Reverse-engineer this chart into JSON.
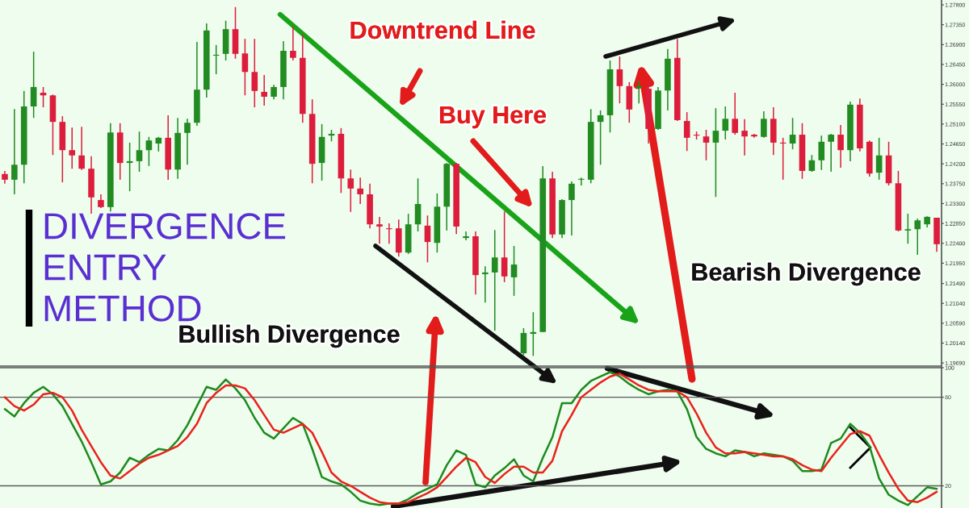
{
  "chart_data": [
    {
      "type": "candlestick",
      "title": "DIVERGENCE ENTRY METHOD",
      "categories": [
        null,
        null,
        null,
        null,
        null,
        null,
        null,
        null,
        null,
        null,
        null,
        null,
        null,
        null,
        null,
        null,
        null,
        null,
        null,
        null,
        null,
        null,
        null,
        null,
        null,
        null,
        null,
        null,
        null,
        null,
        null,
        null,
        null,
        null,
        null,
        null,
        null,
        null,
        null,
        null,
        null,
        null,
        null,
        null,
        null,
        null,
        null,
        null,
        null,
        null,
        null,
        null,
        null,
        null,
        null,
        null,
        null,
        null,
        null,
        null,
        null,
        null,
        null,
        null,
        null,
        null,
        null,
        null,
        null,
        null,
        null,
        null,
        null,
        null,
        null,
        null,
        null,
        null,
        null,
        null,
        null,
        null,
        null,
        null,
        null,
        null,
        null,
        null,
        null,
        null,
        null,
        null,
        null,
        null,
        null,
        null,
        null,
        null
      ],
      "ohlc": [
        [
          1.2397,
          1.2404,
          1.2375,
          1.2384
        ],
        [
          1.2384,
          1.2544,
          1.2351,
          1.2418
        ],
        [
          1.2418,
          1.2585,
          1.2376,
          1.255
        ],
        [
          1.255,
          1.2674,
          1.2524,
          1.2594
        ],
        [
          1.2581,
          1.2594,
          1.2548,
          1.2575
        ],
        [
          1.2575,
          1.2577,
          1.244,
          1.2515
        ],
        [
          1.2515,
          1.2528,
          1.2378,
          1.2451
        ],
        [
          1.2451,
          1.2502,
          1.2409,
          1.2439
        ],
        [
          1.2439,
          1.2504,
          1.2406,
          1.2409
        ],
        [
          1.2409,
          1.2437,
          1.2307,
          1.2344
        ],
        [
          1.2338,
          1.2351,
          1.232,
          1.2322
        ],
        [
          1.2322,
          1.2512,
          1.2312,
          1.2491
        ],
        [
          1.2491,
          1.2512,
          1.2384,
          1.2422
        ],
        [
          1.2422,
          1.2468,
          1.2358,
          1.2426
        ],
        [
          1.2426,
          1.2493,
          1.2402,
          1.2451
        ],
        [
          1.2451,
          1.2481,
          1.2415,
          1.2473
        ],
        [
          1.2466,
          1.2481,
          1.2448,
          1.2479
        ],
        [
          1.2479,
          1.253,
          1.2384,
          1.2407
        ],
        [
          1.2407,
          1.2524,
          1.2386,
          1.249
        ],
        [
          1.249,
          1.2522,
          1.2418,
          1.2513
        ],
        [
          1.2513,
          1.2696,
          1.2506,
          1.2588
        ],
        [
          1.2588,
          1.2738,
          1.257,
          1.2722
        ],
        [
          1.2665,
          1.2689,
          1.2623,
          1.2667
        ],
        [
          1.2669,
          1.2744,
          1.2654,
          1.2725
        ],
        [
          1.2725,
          1.2775,
          1.2658,
          1.2669
        ],
        [
          1.267,
          1.2703,
          1.2575,
          1.2628
        ],
        [
          1.2628,
          1.2703,
          1.2548,
          1.2585
        ],
        [
          1.2583,
          1.2621,
          1.2552,
          1.2572
        ],
        [
          1.2572,
          1.2599,
          1.2566,
          1.2594
        ],
        [
          1.2594,
          1.2698,
          1.2566,
          1.2676
        ],
        [
          1.2676,
          1.2731,
          1.2654,
          1.266
        ],
        [
          1.266,
          1.2713,
          1.2513,
          1.2533
        ],
        [
          1.2533,
          1.2566,
          1.2376,
          1.242
        ],
        [
          1.2422,
          1.251,
          1.2382,
          1.2481
        ],
        [
          1.2484,
          1.2497,
          1.2471,
          1.2488
        ],
        [
          1.2488,
          1.2501,
          1.2354,
          1.2387
        ],
        [
          1.2387,
          1.2407,
          1.2311,
          1.2364
        ],
        [
          1.2364,
          1.2389,
          1.2329,
          1.2351
        ],
        [
          1.2351,
          1.2375,
          1.2274,
          1.2283
        ],
        [
          1.2283,
          1.23,
          1.2239,
          1.2278
        ],
        [
          1.2274,
          1.2285,
          1.2239,
          1.2272
        ],
        [
          1.2274,
          1.2294,
          1.221,
          1.2219
        ],
        [
          1.2219,
          1.2307,
          1.2216,
          1.2283
        ],
        [
          1.2283,
          1.2387,
          1.2267,
          1.2329
        ],
        [
          1.228,
          1.2303,
          1.2197,
          1.2243
        ],
        [
          1.2241,
          1.2353,
          1.2219,
          1.2323
        ],
        [
          1.2323,
          1.2422,
          1.2269,
          1.242
        ],
        [
          1.242,
          1.2422,
          1.2261,
          1.2278
        ],
        [
          1.2252,
          1.2267,
          1.2247,
          1.2256
        ],
        [
          1.2256,
          1.2267,
          1.2124,
          1.2168
        ],
        [
          1.217,
          1.2188,
          1.2106,
          1.2174
        ],
        [
          1.2174,
          1.227,
          1.2042,
          1.2208
        ],
        [
          1.2208,
          1.2312,
          1.2152,
          1.2165
        ],
        [
          1.2163,
          1.2234,
          1.2121,
          1.2192
        ],
        [
          1.1991,
          1.2048,
          1.1987,
          1.2037
        ],
        [
          1.2035,
          1.2084,
          1.1985,
          1.2039
        ],
        [
          1.2039,
          1.2415,
          1.2039,
          1.2387
        ],
        [
          1.2387,
          1.2402,
          1.2252,
          1.226
        ],
        [
          1.226,
          1.234,
          1.2252,
          1.2338
        ],
        [
          1.2338,
          1.238,
          1.2258,
          1.2375
        ],
        [
          1.2384,
          1.2389,
          1.2371,
          1.2386
        ],
        [
          1.2384,
          1.2544,
          1.2376,
          1.2515
        ],
        [
          1.2515,
          1.2541,
          1.2418,
          1.253
        ],
        [
          1.253,
          1.2654,
          1.2491,
          1.2634
        ],
        [
          1.2634,
          1.2663,
          1.2557,
          1.2596
        ],
        [
          1.2596,
          1.2605,
          1.2513,
          1.2543
        ],
        [
          1.2592,
          1.2608,
          1.2557,
          1.2596
        ],
        [
          1.259,
          1.2605,
          1.2466,
          1.2499
        ],
        [
          1.2499,
          1.2594,
          1.2497,
          1.2586
        ],
        [
          1.2586,
          1.268,
          1.2541,
          1.2658
        ],
        [
          1.266,
          1.2703,
          1.2517,
          1.2519
        ],
        [
          1.2517,
          1.2537,
          1.2449,
          1.2479
        ],
        [
          1.2486,
          1.2493,
          1.2475,
          1.2484
        ],
        [
          1.2482,
          1.2497,
          1.2428,
          1.2468
        ],
        [
          1.2468,
          1.2546,
          1.2345,
          1.2495
        ],
        [
          1.2495,
          1.255,
          1.2475,
          1.2522
        ],
        [
          1.2522,
          1.2581,
          1.2486,
          1.249
        ],
        [
          1.2495,
          1.2521,
          1.2439,
          1.2482
        ],
        [
          1.2486,
          1.2488,
          1.2479,
          1.2482
        ],
        [
          1.2481,
          1.2539,
          1.2479,
          1.2522
        ],
        [
          1.2522,
          1.2548,
          1.244,
          1.2468
        ],
        [
          1.2468,
          1.2479,
          1.2384,
          1.2466
        ],
        [
          1.2466,
          1.2524,
          1.2453,
          1.2486
        ],
        [
          1.2486,
          1.2512,
          1.2386,
          1.2404
        ],
        [
          1.2404,
          1.244,
          1.2402,
          1.2428
        ],
        [
          1.2428,
          1.2484,
          1.2406,
          1.247
        ],
        [
          1.247,
          1.2488,
          1.2402,
          1.2486
        ],
        [
          1.2486,
          1.2508,
          1.2411,
          1.2451
        ],
        [
          1.2451,
          1.2561,
          1.2426,
          1.2554
        ],
        [
          1.2554,
          1.2568,
          1.2448,
          1.2455
        ],
        [
          1.247,
          1.2473,
          1.2391,
          1.2398
        ],
        [
          1.24,
          1.2479,
          1.2384,
          1.2439
        ],
        [
          1.2439,
          1.247,
          1.2371,
          1.2376
        ],
        [
          1.2376,
          1.2404,
          1.2267,
          1.2269
        ],
        [
          1.2269,
          1.2307,
          1.2239,
          1.2272
        ],
        [
          1.2272,
          1.2296,
          1.2214,
          1.2292
        ],
        [
          1.2283,
          1.2301,
          1.2276,
          1.23
        ],
        [
          1.2298,
          1.2298,
          1.2221,
          1.2238
        ]
      ],
      "colors": [
        "#dc1e3c",
        "#228b22",
        "#228b22",
        "#228b22",
        "#dc1e3c",
        "#dc1e3c",
        "#dc1e3c",
        "#dc1e3c",
        "#dc1e3c",
        "#dc1e3c",
        "#dc1e3c",
        "#228b22",
        "#dc1e3c",
        "#228b22",
        "#228b22",
        "#228b22",
        "#228b22",
        "#dc1e3c",
        "#228b22",
        "#228b22",
        "#228b22",
        "#228b22",
        "#228b22",
        "#228b22",
        "#dc1e3c",
        "#dc1e3c",
        "#dc1e3c",
        "#dc1e3c",
        "#228b22",
        "#228b22",
        "#dc1e3c",
        "#dc1e3c",
        "#dc1e3c",
        "#228b22",
        "#228b22",
        "#dc1e3c",
        "#dc1e3c",
        "#dc1e3c",
        "#dc1e3c",
        "#dc1e3c",
        "#dc1e3c",
        "#dc1e3c",
        "#228b22",
        "#228b22",
        "#dc1e3c",
        "#228b22",
        "#228b22",
        "#dc1e3c",
        "#228b22",
        "#dc1e3c",
        "#228b22",
        "#228b22",
        "#dc1e3c",
        "#228b22",
        "#228b22",
        "#228b22",
        "#228b22",
        "#dc1e3c",
        "#228b22",
        "#228b22",
        "#228b22",
        "#228b22",
        "#228b22",
        "#228b22",
        "#dc1e3c",
        "#dc1e3c",
        "#228b22",
        "#dc1e3c",
        "#228b22",
        "#228b22",
        "#dc1e3c",
        "#dc1e3c",
        "#dc1e3c",
        "#dc1e3c",
        "#228b22",
        "#228b22",
        "#dc1e3c",
        "#dc1e3c",
        "#dc1e3c",
        "#228b22",
        "#dc1e3c",
        "#dc1e3c",
        "#228b22",
        "#dc1e3c",
        "#228b22",
        "#228b22",
        "#228b22",
        "#dc1e3c",
        "#228b22",
        "#dc1e3c",
        "#dc1e3c",
        "#228b22",
        "#dc1e3c",
        "#dc1e3c",
        "#228b22",
        "#228b22",
        "#228b22",
        "#dc1e3c"
      ],
      "ylim": [
        1.1962,
        1.2791
      ],
      "yticks": [
        {
          "value": 1.278,
          "label": "1.27800"
        },
        {
          "value": 1.2735,
          "label": "1.27350"
        },
        {
          "value": 1.269,
          "label": "1.26900"
        },
        {
          "value": 1.2645,
          "label": "1.26450"
        },
        {
          "value": 1.26,
          "label": "1.26000"
        },
        {
          "value": 1.2555,
          "label": "1.25550"
        },
        {
          "value": 1.251,
          "label": "1.25100"
        },
        {
          "value": 1.2465,
          "label": "1.24650"
        },
        {
          "value": 1.242,
          "label": "1.24200"
        },
        {
          "value": 1.2375,
          "label": "1.23750"
        },
        {
          "value": 1.233,
          "label": "1.23300"
        },
        {
          "value": 1.2285,
          "label": "1.22850"
        },
        {
          "value": 1.224,
          "label": "1.22400"
        },
        {
          "value": 1.2195,
          "label": "1.21950"
        },
        {
          "value": 1.2149,
          "label": "1.21490"
        },
        {
          "value": 1.2104,
          "label": "1.21040"
        },
        {
          "value": 1.2059,
          "label": "1.20590"
        },
        {
          "value": 1.2014,
          "label": "1.20140"
        },
        {
          "value": 1.1969,
          "label": "1.19690"
        }
      ],
      "tick_labels": "y",
      "annotations": [
        "Downtrend Line",
        "Buy Here",
        "Bullish Divergence",
        "Bearish Divergence"
      ]
    },
    {
      "type": "line",
      "categories": [
        null,
        null,
        null,
        null,
        null,
        null,
        null,
        null,
        null,
        null,
        null,
        null,
        null,
        null,
        null,
        null,
        null,
        null,
        null,
        null,
        null,
        null,
        null,
        null,
        null,
        null,
        null,
        null,
        null,
        null,
        null,
        null,
        null,
        null,
        null,
        null,
        null,
        null,
        null,
        null,
        null,
        null,
        null,
        null,
        null,
        null,
        null,
        null,
        null,
        null,
        null,
        null,
        null,
        null,
        null,
        null,
        null,
        null,
        null,
        null,
        null,
        null,
        null,
        null,
        null,
        null,
        null,
        null,
        null,
        null,
        null,
        null,
        null,
        null,
        null,
        null,
        null,
        null,
        null,
        null,
        null,
        null,
        null,
        null,
        null,
        null,
        null,
        null,
        null,
        null,
        null,
        null,
        null,
        null,
        null,
        null,
        null,
        null
      ],
      "series": [
        {
          "color": "#1e8a1e",
          "values": [
            72,
            67,
            76,
            83,
            87,
            82,
            74,
            62,
            50,
            36,
            21,
            23,
            29,
            39,
            36,
            41,
            45,
            44,
            51,
            61,
            74,
            87,
            85,
            92,
            86,
            78,
            66,
            56,
            52,
            59,
            66,
            62,
            45,
            26,
            23,
            21,
            16,
            10,
            8,
            7,
            8,
            8,
            11,
            15,
            18,
            21,
            34,
            44,
            41,
            21,
            19,
            27,
            32,
            38,
            27,
            23,
            39,
            53,
            76,
            76,
            85,
            91,
            94,
            97,
            94,
            89,
            85,
            82,
            84,
            85,
            84,
            72,
            53,
            45,
            42,
            40,
            44,
            43,
            40,
            42,
            41,
            40,
            37,
            30,
            30,
            31,
            49,
            52,
            62,
            56,
            47,
            25,
            14,
            10,
            7,
            13,
            19,
            18
          ]
        },
        {
          "color": "#e8231c",
          "values": [
            80,
            74,
            71,
            75,
            82,
            83,
            80,
            71,
            58,
            47,
            36,
            27,
            25,
            30,
            35,
            39,
            41,
            44,
            47,
            53,
            62,
            76,
            83,
            88,
            88,
            86,
            78,
            68,
            58,
            56,
            59,
            62,
            56,
            43,
            29,
            23,
            20,
            16,
            12,
            9,
            8,
            8,
            9,
            12,
            15,
            19,
            26,
            33,
            39,
            36,
            26,
            22,
            28,
            33,
            33,
            29,
            29,
            37,
            57,
            68,
            80,
            85,
            90,
            94,
            96,
            92,
            88,
            85,
            84,
            84,
            84,
            80,
            69,
            56,
            46,
            42,
            42,
            43,
            42,
            41,
            40,
            40,
            38,
            34,
            31,
            30,
            39,
            47,
            55,
            57,
            54,
            41,
            29,
            18,
            10,
            9,
            12,
            16
          ]
        }
      ],
      "ylim": [
        5,
        100
      ],
      "yticks": [
        100,
        80,
        20
      ],
      "ref_lines": [
        {
          "axis": "y",
          "value": 80,
          "color": "#5a5a5a"
        },
        {
          "axis": "y",
          "value": 20,
          "color": "#5a5a5a"
        }
      ],
      "tick_labels": "y"
    }
  ]
}
